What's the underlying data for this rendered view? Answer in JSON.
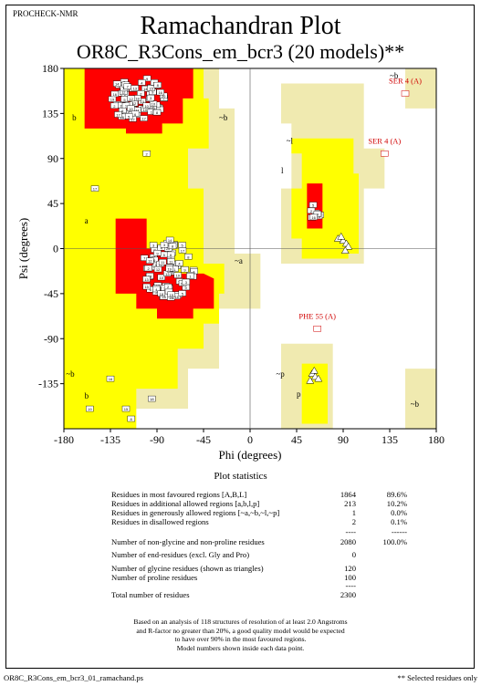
{
  "header_tag": "PROCHECK-NMR",
  "chart_data": {
    "type": "scatter",
    "title": "Ramachandran Plot",
    "subtitle": "OR8C_R3Cons_em_bcr3 (20 models)**",
    "xlabel": "Phi (degrees)",
    "ylabel": "Psi (degrees)",
    "xlim": [
      -180,
      180
    ],
    "ylim": [
      -180,
      180
    ],
    "xticks": [
      "-180",
      "-135",
      "-90",
      "-45",
      "0",
      "45",
      "90",
      "135",
      "180"
    ],
    "yticks": [
      "180",
      "135",
      "90",
      "45",
      "0",
      "-45",
      "-90",
      "-135"
    ],
    "region_labels": [
      "b",
      "~b",
      "~b",
      "~l",
      "l",
      "a",
      "~a",
      "~b",
      "b",
      "~p",
      "p",
      "~b"
    ],
    "region_colors": {
      "most_favoured": "#ff0000",
      "additional_allowed": "#ffff00",
      "generously_allowed": "#f0eab0",
      "disallowed": "#ffffff"
    },
    "annotations": [
      {
        "label": "SER 4 (A)",
        "phi": 150,
        "psi": 165
      },
      {
        "label": "SER 4 (A)",
        "phi": 130,
        "psi": 105
      },
      {
        "label": "PHE 55 (A)",
        "phi": 65,
        "psi": -70
      }
    ],
    "glycine_points": [
      [
        85,
        10
      ],
      [
        90,
        8
      ],
      [
        93,
        5
      ],
      [
        95,
        2
      ],
      [
        88,
        12
      ],
      [
        92,
        -2
      ],
      [
        60,
        -125
      ],
      [
        63,
        -128
      ],
      [
        66,
        -130
      ],
      [
        58,
        -132
      ],
      [
        62,
        -122
      ]
    ],
    "model_marker_labels": [
      "17",
      "20",
      "9",
      "2",
      "13",
      "4",
      "16",
      "5",
      "12",
      "8",
      "11",
      "3",
      "18",
      "1",
      "6",
      "19",
      "10",
      "14",
      "15",
      "7"
    ]
  },
  "stats": {
    "title": "Plot statistics",
    "rows": [
      {
        "label": "Residues in most favoured regions  [A,B,L]",
        "count": "1864",
        "pct": "89.6%"
      },
      {
        "label": "Residues in additional allowed regions  [a,b,l,p]",
        "count": "213",
        "pct": "10.2%"
      },
      {
        "label": "Residues in generously allowed regions  [~a,~b,~l,~p]",
        "count": "1",
        "pct": "0.0%"
      },
      {
        "label": "Residues in disallowed regions",
        "count": "2",
        "pct": "0.1%"
      },
      {
        "label": "Number of non-glycine and non-proline residues",
        "count": "2080",
        "pct": "100.0%"
      },
      {
        "label": "Number of end-residues (excl. Gly and Pro)",
        "count": "0",
        "pct": ""
      },
      {
        "label": "Number of glycine residues (shown as triangles)",
        "count": "120",
        "pct": ""
      },
      {
        "label": "Number of proline residues",
        "count": "100",
        "pct": ""
      },
      {
        "label": "Total number of residues",
        "count": "2300",
        "pct": ""
      }
    ],
    "separator_dashes": "----",
    "separator_dashes_pct": "------"
  },
  "note_lines": [
    "Based on an analysis of 118 structures of resolution of at least 2.0 Angstroms",
    "and R-factor no greater than 20%, a good quality model would be expected",
    "to have over 90% in the most favoured regions.",
    "Model numbers shown inside each data point."
  ],
  "footer": {
    "filename": "OR8C_R3Cons_em_bcr3_01_ramachand.ps",
    "selected_note": "** Selected residues only"
  }
}
